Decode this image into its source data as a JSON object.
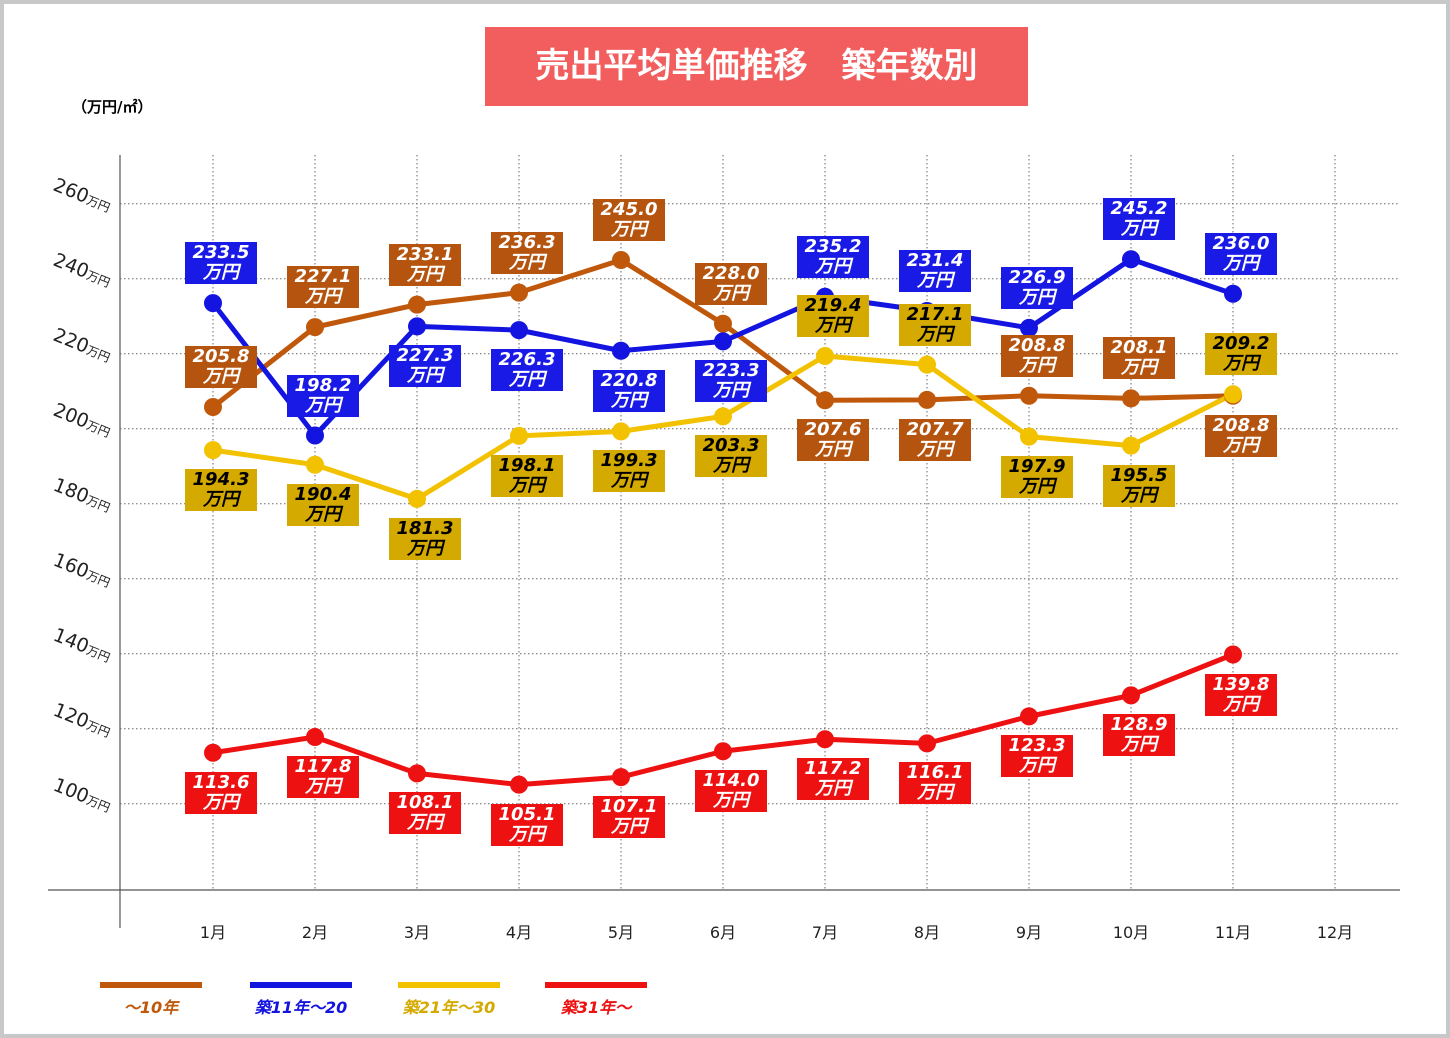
{
  "chart_data": {
    "type": "line",
    "title": "売出平均単価推移　築年数別",
    "y_label": "（万円/㎡）",
    "categories": [
      "1月",
      "2月",
      "3月",
      "4月",
      "5月",
      "6月",
      "7月",
      "8月",
      "9月",
      "10月",
      "11月",
      "12月"
    ],
    "ylim": [
      77,
      273
    ],
    "yticks": [
      {
        "value": 100,
        "label": "100万円"
      },
      {
        "value": 120,
        "label": "120万円"
      },
      {
        "value": 140,
        "label": "140万円"
      },
      {
        "value": 160,
        "label": "160万円"
      },
      {
        "value": 180,
        "label": "180万円"
      },
      {
        "value": 200,
        "label": "200万円"
      },
      {
        "value": 220,
        "label": "220万円"
      },
      {
        "value": 240,
        "label": "240万円"
      },
      {
        "value": 260,
        "label": "260万円"
      }
    ],
    "grid": true,
    "legend": "bottom",
    "series": [
      {
        "name": "～10年",
        "color": "#c0580c",
        "label_bg": "#b5540f",
        "label_color": "#ffffff",
        "values": [
          205.8,
          227.1,
          233.1,
          236.3,
          245.0,
          228.0,
          207.6,
          207.7,
          208.8,
          208.1,
          208.8,
          null
        ],
        "value_labels": [
          "205.8\n万円",
          "227.1\n万円",
          "233.1\n万円",
          "236.3\n万円",
          "245.0\n万円",
          "228.0\n万円",
          "207.6\n万円",
          "207.7\n万円",
          "208.8\n万円",
          "208.1\n万円",
          "208.8\n万円",
          null
        ]
      },
      {
        "name": "築11年～20",
        "color": "#1414e0",
        "label_bg": "#1a1ae6",
        "label_color": "#ffffff",
        "values": [
          233.5,
          198.2,
          227.3,
          226.3,
          220.8,
          223.3,
          235.2,
          231.4,
          226.9,
          245.2,
          236.0,
          null
        ],
        "value_labels": [
          "233.5\n万円",
          "198.2\n万円",
          "227.3\n万円",
          "226.3\n万円",
          "220.8\n万円",
          "223.3\n万円",
          "235.2\n万円",
          "231.4\n万円",
          "226.9\n万円",
          "245.2\n万円",
          "236.0\n万円",
          null
        ]
      },
      {
        "name": "築21年～30",
        "color": "#f2c200",
        "label_bg": "#d4aa00",
        "label_color": "#000000",
        "values": [
          194.3,
          190.4,
          181.3,
          198.1,
          199.3,
          203.3,
          219.4,
          217.1,
          197.9,
          195.5,
          209.2,
          null
        ],
        "value_labels": [
          "194.3\n万円",
          "190.4\n万円",
          "181.3\n万円",
          "198.1\n万円",
          "199.3\n万円",
          "203.3\n万円",
          "219.4\n万円",
          "217.1\n万円",
          "197.9\n万円",
          "195.5\n万円",
          "209.2\n万円",
          null
        ]
      },
      {
        "name": "築31年～",
        "color": "#ee1111",
        "label_bg": "#ee1111",
        "label_color": "#ffffff",
        "values": [
          113.6,
          117.8,
          108.1,
          105.1,
          107.1,
          114.0,
          117.2,
          116.1,
          123.3,
          128.9,
          139.8,
          null
        ],
        "value_labels": [
          "113.6\n万円",
          "117.8\n万円",
          "108.1\n万円",
          "105.1\n万円",
          "107.1\n万円",
          "114.0\n万円",
          "117.2\n万円",
          "116.1\n万円",
          "123.3\n万円",
          "128.9\n万円",
          "139.8\n万円",
          null
        ]
      }
    ]
  }
}
